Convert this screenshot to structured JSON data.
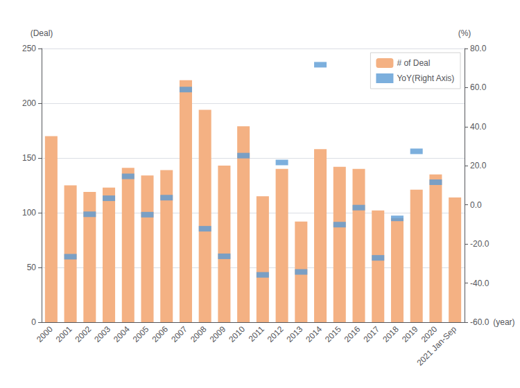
{
  "chart_data": {
    "type": "bar",
    "categories": [
      "2000",
      "2001",
      "2002",
      "2003",
      "2004",
      "2005",
      "2006",
      "2007",
      "2008",
      "2009",
      "2010",
      "2011",
      "2012",
      "2013",
      "2014",
      "2015",
      "2016",
      "2017",
      "2018",
      "2019",
      "2020",
      "2021 Jan-Sep"
    ],
    "series": [
      {
        "name": "# of Deal",
        "type": "bar",
        "color": "#F4B183",
        "values": [
          170,
          125,
          119,
          123,
          141,
          134,
          139,
          221,
          194,
          143,
          179,
          115,
          140,
          92,
          158,
          142,
          140,
          102,
          95,
          121,
          135,
          114
        ]
      },
      {
        "name": "YoY(Right Axis)",
        "type": "scatter",
        "marker": "square",
        "axis": "y2",
        "color": "#5B9BD5",
        "values": [
          null,
          -26.5,
          -4.8,
          3.4,
          14.6,
          -5.0,
          3.7,
          59.0,
          -12.2,
          -26.3,
          25.2,
          -35.8,
          21.7,
          -34.3,
          71.7,
          -10.1,
          -1.4,
          -27.1,
          -6.9,
          27.4,
          11.6,
          null
        ]
      }
    ],
    "xlabel": "(year)",
    "ylabel": "(Deal)",
    "y2label": "(%)",
    "ylim": [
      0,
      250
    ],
    "yticks": [
      0,
      50,
      100,
      150,
      200,
      250
    ],
    "y2lim": [
      -60,
      80
    ],
    "y2ticks": [
      {
        "value": -60,
        "label": "-60.0"
      },
      {
        "value": -40,
        "label": "-40.0"
      },
      {
        "value": -20,
        "label": "-20.0"
      },
      {
        "value": 0,
        "label": "0.0"
      },
      {
        "value": 20,
        "label": "20.0"
      },
      {
        "value": 40,
        "label": "40.0"
      },
      {
        "value": 60,
        "label": "60.0"
      },
      {
        "value": 80,
        "label": "80.0"
      }
    ],
    "grid": true,
    "legend": "upper right"
  }
}
